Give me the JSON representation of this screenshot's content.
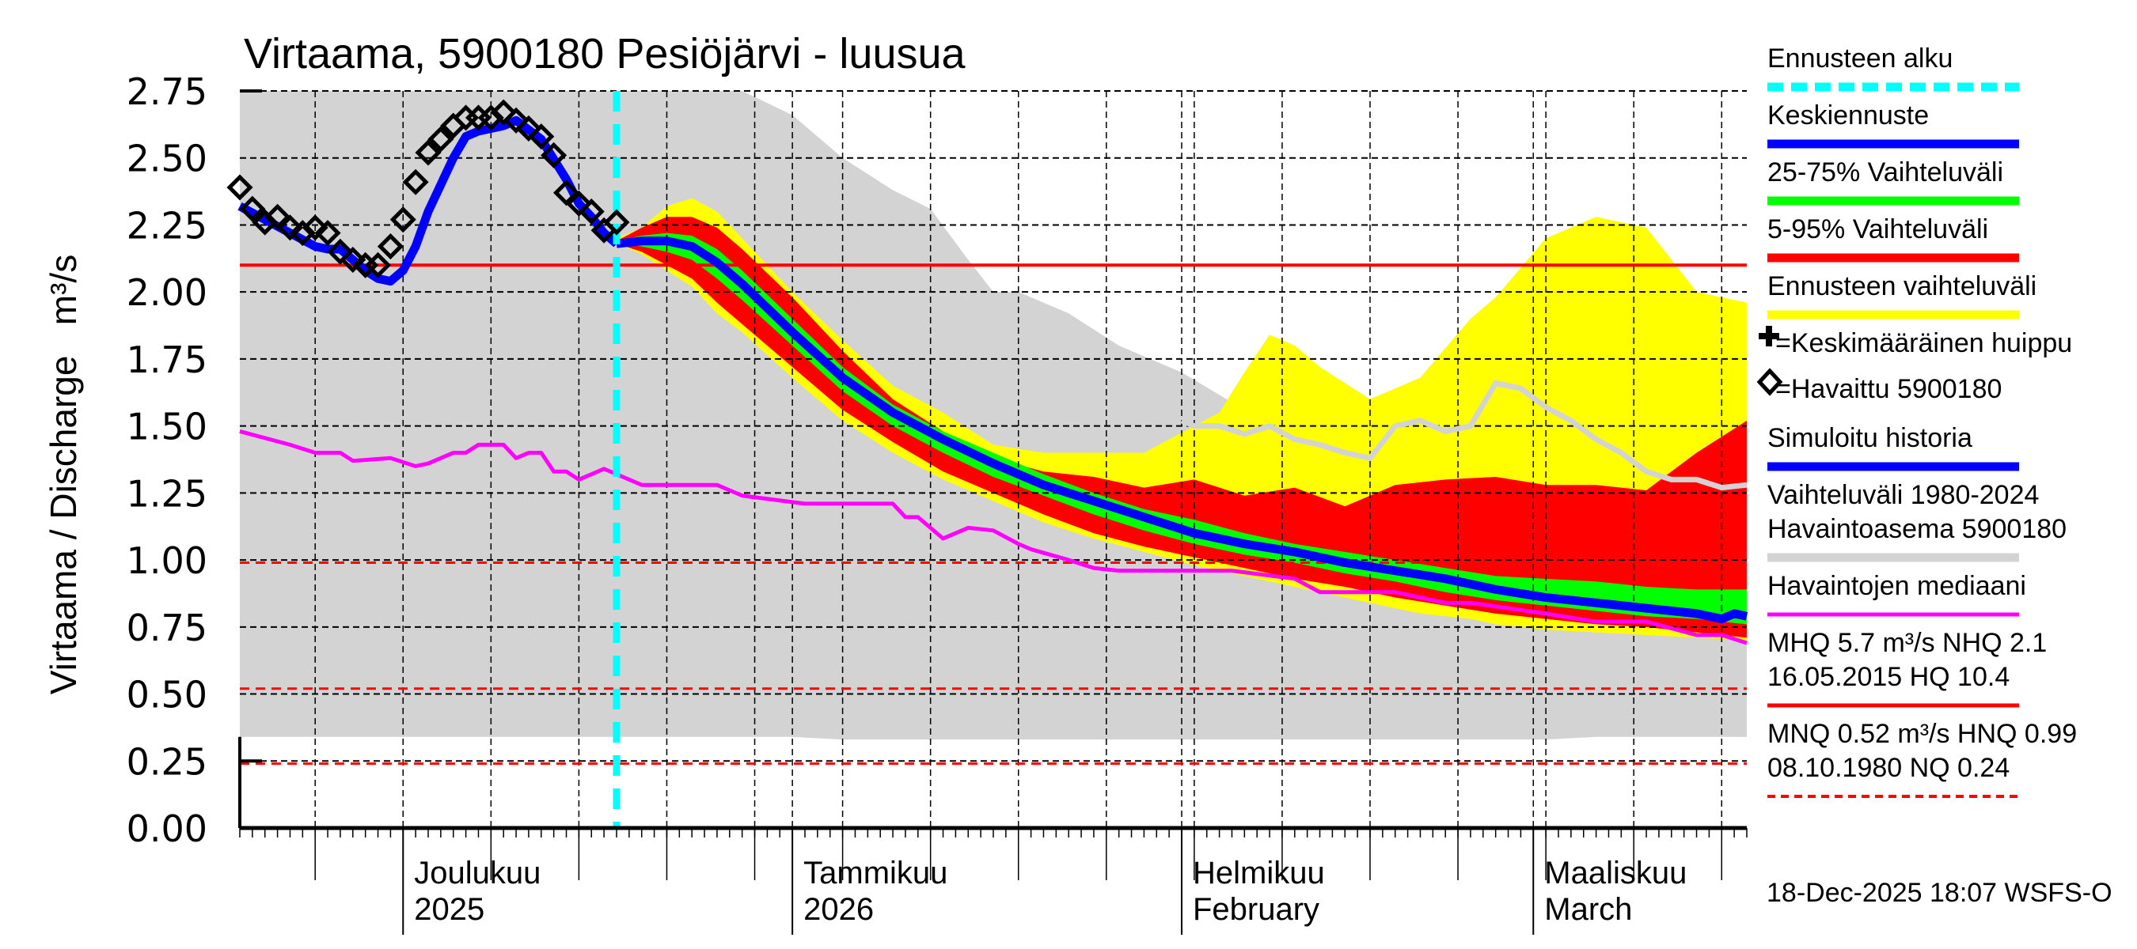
{
  "chart_data": {
    "type": "area",
    "title": "Virtaama, 5900180 Pesiöjärvi - luusua",
    "ylabel": "Virtaama / Discharge   m³/s",
    "xlabel": "",
    "ylim": [
      0,
      2.75
    ],
    "yticks": [
      "0.00",
      "0.25",
      "0.50",
      "0.75",
      "1.00",
      "1.25",
      "1.50",
      "1.75",
      "2.00",
      "2.25",
      "2.50",
      "2.75"
    ],
    "x_unit": "days since 18-Nov-2025",
    "xlim": [
      0,
      120
    ],
    "forecast_start_day": 30,
    "month_labels": [
      {
        "day": 13,
        "line1": "Joulukuu",
        "line2": "2025"
      },
      {
        "day": 44,
        "line1": "Tammikuu",
        "line2": "2026"
      },
      {
        "day": 75,
        "line1": "Helmikuu",
        "line2": "February"
      },
      {
        "day": 103,
        "line1": "Maaliskuu",
        "line2": "March"
      }
    ],
    "grid": true,
    "reference_lines": [
      {
        "name": "NHQ",
        "value": 2.1,
        "style": "solid",
        "color": "#ff0000"
      },
      {
        "name": "HNQ",
        "value": 0.99,
        "style": "dashed",
        "color": "#ff0000"
      },
      {
        "name": "MNQ",
        "value": 0.52,
        "style": "dashed",
        "color": "#ff0000"
      },
      {
        "name": "NQ",
        "value": 0.24,
        "style": "dashed",
        "color": "#ff0000"
      }
    ],
    "series": [
      {
        "name": "Vaihteluväli 1980-2024 Havaintoasema 5900180",
        "kind": "band",
        "color": "#d3d3d3",
        "x": [
          0,
          25,
          29,
          30,
          34,
          40,
          44,
          48,
          52,
          55,
          58,
          60,
          62,
          66,
          70,
          75,
          80,
          84,
          88,
          92,
          96,
          100,
          104,
          108,
          112,
          116,
          120
        ],
        "low": [
          0.34,
          0.34,
          0.34,
          0.34,
          0.34,
          0.34,
          0.34,
          0.33,
          0.33,
          0.33,
          0.33,
          0.33,
          0.33,
          0.33,
          0.33,
          0.33,
          0.33,
          0.33,
          0.33,
          0.33,
          0.33,
          0.33,
          0.33,
          0.34,
          0.34,
          0.34,
          0.34
        ],
        "high": [
          2.75,
          2.75,
          2.75,
          2.75,
          2.75,
          2.75,
          2.66,
          2.5,
          2.38,
          2.31,
          2.12,
          2.0,
          2.0,
          1.92,
          1.8,
          1.7,
          1.56,
          1.55,
          1.52,
          1.5,
          1.4,
          1.38,
          1.34,
          1.32,
          1.3,
          1.29,
          1.28
        ],
        "line_x": [
          75,
          76,
          78,
          80,
          82,
          84,
          86,
          88,
          90,
          92,
          94,
          96,
          98,
          100,
          102,
          104,
          106,
          108,
          110,
          112,
          114,
          116,
          118,
          120
        ],
        "line": [
          1.52,
          1.5,
          1.5,
          1.47,
          1.5,
          1.45,
          1.43,
          1.4,
          1.38,
          1.5,
          1.52,
          1.48,
          1.5,
          1.66,
          1.64,
          1.57,
          1.52,
          1.45,
          1.4,
          1.33,
          1.3,
          1.3,
          1.27,
          1.28
        ]
      },
      {
        "name": "Ennusteen vaihteluväli",
        "kind": "band",
        "color": "#ffff00",
        "x": [
          30,
          32,
          34,
          36,
          38,
          40,
          44,
          48,
          52,
          56,
          60,
          64,
          68,
          72,
          76,
          78,
          80,
          82,
          84,
          86,
          90,
          94,
          98,
          100,
          104,
          108,
          112,
          116,
          120
        ],
        "low": [
          2.18,
          2.14,
          2.08,
          2.02,
          1.92,
          1.85,
          1.68,
          1.52,
          1.4,
          1.3,
          1.22,
          1.14,
          1.08,
          1.03,
          0.98,
          0.96,
          0.94,
          0.92,
          0.9,
          0.88,
          0.84,
          0.8,
          0.78,
          0.76,
          0.74,
          0.73,
          0.72,
          0.71,
          0.7
        ],
        "high": [
          2.2,
          2.24,
          2.32,
          2.35,
          2.3,
          2.2,
          2.0,
          1.82,
          1.65,
          1.55,
          1.43,
          1.4,
          1.4,
          1.4,
          1.5,
          1.55,
          1.7,
          1.84,
          1.8,
          1.72,
          1.6,
          1.68,
          1.9,
          1.98,
          2.2,
          2.28,
          2.24,
          2.0,
          1.96
        ]
      },
      {
        "name": "5-95% Vaihteluväli",
        "kind": "band",
        "color": "#ff0000",
        "x": [
          30,
          32,
          34,
          36,
          38,
          40,
          44,
          48,
          52,
          56,
          60,
          64,
          68,
          72,
          76,
          80,
          84,
          88,
          92,
          96,
          100,
          104,
          108,
          112,
          116,
          118,
          120
        ],
        "low": [
          2.18,
          2.15,
          2.1,
          2.05,
          1.96,
          1.88,
          1.72,
          1.56,
          1.44,
          1.33,
          1.25,
          1.17,
          1.1,
          1.05,
          1.01,
          0.97,
          0.93,
          0.9,
          0.86,
          0.83,
          0.8,
          0.78,
          0.76,
          0.75,
          0.73,
          0.72,
          0.71
        ],
        "high": [
          2.19,
          2.24,
          2.28,
          2.28,
          2.24,
          2.16,
          1.98,
          1.78,
          1.6,
          1.48,
          1.38,
          1.33,
          1.31,
          1.27,
          1.3,
          1.24,
          1.27,
          1.2,
          1.28,
          1.3,
          1.31,
          1.28,
          1.28,
          1.26,
          1.4,
          1.46,
          1.52
        ]
      },
      {
        "name": "25-75% Vaihteluväli",
        "kind": "band",
        "color": "#00ff00",
        "x": [
          30,
          32,
          34,
          36,
          38,
          40,
          44,
          48,
          52,
          56,
          60,
          64,
          68,
          72,
          76,
          80,
          84,
          88,
          92,
          96,
          100,
          104,
          108,
          112,
          116,
          120
        ],
        "low": [
          2.18,
          2.17,
          2.15,
          2.12,
          2.05,
          1.97,
          1.8,
          1.63,
          1.5,
          1.4,
          1.31,
          1.24,
          1.17,
          1.11,
          1.06,
          1.02,
          0.99,
          0.95,
          0.92,
          0.88,
          0.85,
          0.83,
          0.81,
          0.79,
          0.78,
          0.76
        ],
        "high": [
          2.19,
          2.21,
          2.22,
          2.21,
          2.16,
          2.08,
          1.9,
          1.72,
          1.58,
          1.48,
          1.4,
          1.32,
          1.25,
          1.19,
          1.15,
          1.1,
          1.06,
          1.03,
          1.0,
          0.97,
          0.94,
          0.93,
          0.92,
          0.9,
          0.89,
          0.89
        ]
      },
      {
        "name": "Keskiennuste",
        "kind": "line",
        "color": "#0000ff",
        "x": [
          30,
          32,
          34,
          36,
          38,
          40,
          44,
          48,
          52,
          56,
          60,
          64,
          68,
          72,
          76,
          80,
          84,
          88,
          92,
          96,
          100,
          104,
          108,
          112,
          116,
          118,
          119,
          120
        ],
        "values": [
          2.18,
          2.19,
          2.19,
          2.17,
          2.11,
          2.03,
          1.85,
          1.68,
          1.55,
          1.45,
          1.36,
          1.28,
          1.22,
          1.16,
          1.1,
          1.06,
          1.03,
          0.99,
          0.96,
          0.93,
          0.89,
          0.86,
          0.84,
          0.82,
          0.8,
          0.78,
          0.8,
          0.79
        ]
      },
      {
        "name": "Simuloitu historia",
        "kind": "line",
        "color": "#0000ff",
        "x": [
          0,
          2,
          4,
          6,
          7,
          8,
          10,
          11,
          12,
          13,
          14,
          15,
          16,
          17,
          18,
          19,
          20,
          21,
          22,
          24,
          26,
          27,
          28,
          29,
          30
        ],
        "values": [
          2.32,
          2.27,
          2.22,
          2.17,
          2.16,
          2.16,
          2.08,
          2.05,
          2.04,
          2.08,
          2.17,
          2.3,
          2.4,
          2.5,
          2.58,
          2.6,
          2.61,
          2.62,
          2.64,
          2.57,
          2.42,
          2.33,
          2.28,
          2.22,
          2.18
        ]
      },
      {
        "name": "Havaittu 5900180",
        "kind": "markers",
        "marker": "diamond",
        "color": "#000000",
        "x": [
          0,
          1,
          2,
          3,
          4,
          5,
          6,
          7,
          8,
          9,
          10,
          11,
          12,
          13,
          14,
          15,
          16,
          17,
          18,
          19,
          20,
          21,
          22,
          23,
          24,
          25,
          26,
          27,
          28,
          29,
          30
        ],
        "values": [
          2.39,
          2.31,
          2.26,
          2.28,
          2.24,
          2.22,
          2.24,
          2.22,
          2.15,
          2.12,
          2.1,
          2.1,
          2.17,
          2.27,
          2.41,
          2.52,
          2.57,
          2.62,
          2.65,
          2.65,
          2.65,
          2.67,
          2.64,
          2.61,
          2.58,
          2.51,
          2.37,
          2.33,
          2.3,
          2.23,
          2.26
        ]
      },
      {
        "name": "Havaintojen mediaani",
        "kind": "line",
        "color": "#ff00ff",
        "x": [
          0,
          4,
          6,
          8,
          9,
          12,
          14,
          15,
          17,
          18,
          19,
          21,
          22,
          23,
          24,
          25,
          26,
          27,
          29,
          32,
          34,
          36,
          38,
          40,
          45,
          46,
          50,
          52,
          53,
          54,
          56,
          58,
          60,
          62,
          63,
          66,
          68,
          70,
          72,
          78,
          79,
          84,
          86,
          88,
          92,
          96,
          98,
          104,
          108,
          112,
          116,
          118,
          120
        ],
        "values": [
          1.48,
          1.43,
          1.4,
          1.4,
          1.37,
          1.38,
          1.35,
          1.36,
          1.4,
          1.4,
          1.43,
          1.43,
          1.38,
          1.4,
          1.4,
          1.33,
          1.33,
          1.3,
          1.34,
          1.28,
          1.28,
          1.28,
          1.28,
          1.24,
          1.21,
          1.21,
          1.21,
          1.21,
          1.16,
          1.16,
          1.08,
          1.12,
          1.11,
          1.06,
          1.04,
          1.0,
          0.97,
          0.96,
          0.96,
          0.96,
          0.96,
          0.93,
          0.88,
          0.88,
          0.88,
          0.84,
          0.84,
          0.8,
          0.77,
          0.77,
          0.72,
          0.72,
          0.69
        ]
      }
    ]
  },
  "legend": {
    "items": [
      {
        "label": "Ennusteen alku",
        "color": "#00ffff",
        "style": "dashed"
      },
      {
        "label": "Keskiennuste",
        "color": "#0000ff",
        "style": "solid"
      },
      {
        "label": "25-75% Vaihteluväli",
        "color": "#00ff00",
        "style": "solid"
      },
      {
        "label": "5-95% Vaihteluväli",
        "color": "#ff0000",
        "style": "solid"
      },
      {
        "label": "Ennusteen vaihteluväli",
        "color": "#ffff00",
        "style": "solid"
      },
      {
        "label": "=Keskimääräinen huippu",
        "symbol": "plus"
      },
      {
        "label": "=Havaittu 5900180",
        "symbol": "diamond"
      },
      {
        "label": "Simuloitu historia",
        "color": "#0000ff",
        "style": "solid"
      },
      {
        "label": "Vaihteluväli 1980-2024",
        "label2": "Havaintoasema 5900180",
        "color": "#d3d3d3",
        "style": "solid"
      },
      {
        "label": "Havaintojen mediaani",
        "color": "#ff00ff",
        "style": "solid"
      },
      {
        "label": "MHQ  5.7 m³/s NHQ  2.1",
        "label2": "16.05.2015 HQ 10.4",
        "color": "#ff0000",
        "style": "solid"
      },
      {
        "label": "MNQ 0.52 m³/s HNQ 0.99",
        "label2": "08.10.1980 NQ 0.24",
        "color": "#ff0000",
        "style": "dashed"
      }
    ]
  },
  "footer": {
    "timestamp": "18-Dec-2025 18:07 WSFS-O"
  }
}
